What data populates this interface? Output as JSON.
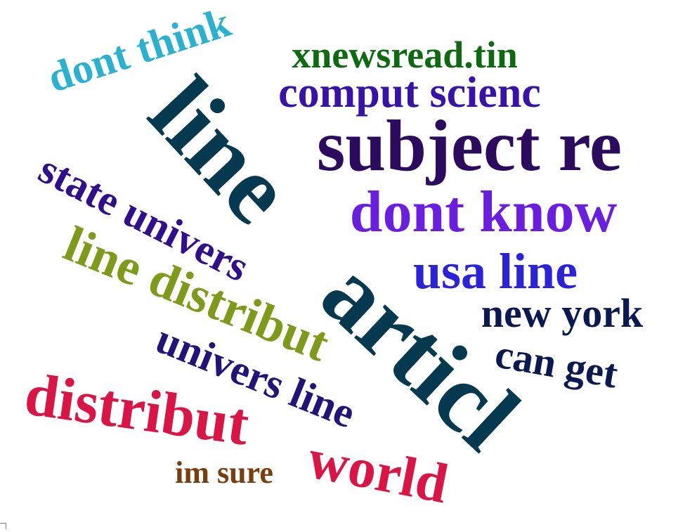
{
  "cloud": {
    "words": [
      {
        "key": "articl",
        "text": "articl",
        "color": "#04394f"
      },
      {
        "key": "line",
        "text": "line",
        "color": "#04394f"
      },
      {
        "key": "subject_re",
        "text": "subject re",
        "color": "#2a0b5e"
      },
      {
        "key": "dont_know",
        "text": "dont know",
        "color": "#6a1fe0"
      },
      {
        "key": "usa_line",
        "text": "usa line",
        "color": "#2a23d8"
      },
      {
        "key": "comput_scienc",
        "text": "comput scienc",
        "color": "#3713a8"
      },
      {
        "key": "xnewsread_tin",
        "text": "xnewsread.tin",
        "color": "#0d6a10"
      },
      {
        "key": "dont_think",
        "text": "dont think",
        "color": "#29b1cf"
      },
      {
        "key": "state_univers",
        "text": "state univers",
        "color": "#2f0f8c"
      },
      {
        "key": "line_distribut",
        "text": "line distribut",
        "color": "#7f9a1a"
      },
      {
        "key": "univers_line",
        "text": "univers line",
        "color": "#22127a"
      },
      {
        "key": "distribut",
        "text": "distribut",
        "color": "#da1444"
      },
      {
        "key": "world",
        "text": "world",
        "color": "#da1444"
      },
      {
        "key": "new_york",
        "text": "new york",
        "color": "#0a1a50"
      },
      {
        "key": "can_get",
        "text": "can get",
        "color": "#0a1a50"
      },
      {
        "key": "im_sure",
        "text": "im sure",
        "color": "#7a3d0d"
      }
    ]
  }
}
